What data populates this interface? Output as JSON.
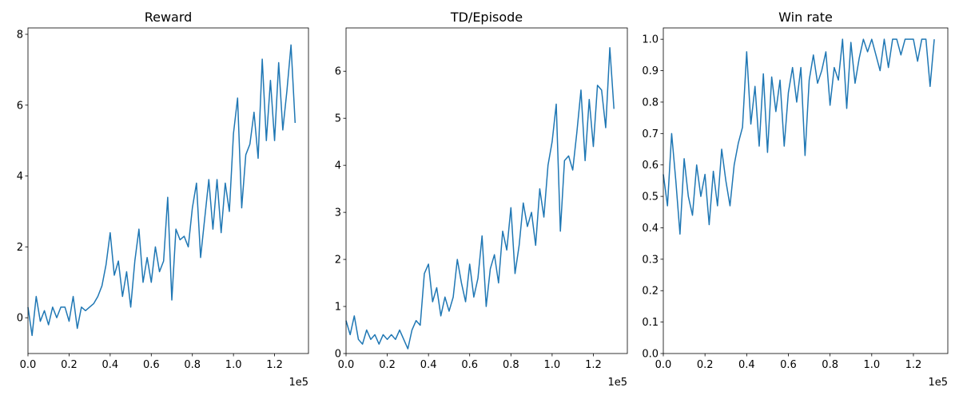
{
  "chart_data": [
    {
      "type": "line",
      "title": "Reward",
      "color": "#1f77b4",
      "x_offset_label": "1e5",
      "x": [
        0,
        0.02,
        0.04,
        0.06,
        0.08,
        0.1,
        0.12,
        0.14,
        0.16,
        0.18,
        0.2,
        0.22,
        0.24,
        0.26,
        0.28,
        0.3,
        0.32,
        0.34,
        0.36,
        0.38,
        0.4,
        0.42,
        0.44,
        0.46,
        0.48,
        0.5,
        0.52,
        0.54,
        0.56,
        0.58,
        0.6,
        0.62,
        0.64,
        0.66,
        0.68,
        0.7,
        0.72,
        0.74,
        0.76,
        0.78,
        0.8,
        0.82,
        0.84,
        0.86,
        0.88,
        0.9,
        0.92,
        0.94,
        0.96,
        0.98,
        1,
        1.02,
        1.04,
        1.06,
        1.08,
        1.1,
        1.12,
        1.14,
        1.16,
        1.18,
        1.2,
        1.22,
        1.24,
        1.26,
        1.28,
        1.3
      ],
      "values": [
        0.3,
        -0.5,
        0.6,
        -0.1,
        0.2,
        -0.2,
        0.3,
        0,
        0.3,
        0.3,
        -0.1,
        0.6,
        -0.3,
        0.3,
        0.2,
        0.3,
        0.4,
        0.6,
        0.9,
        1.5,
        2.4,
        1.2,
        1.6,
        0.6,
        1.3,
        0.3,
        1.6,
        2.5,
        1,
        1.7,
        1,
        2,
        1.3,
        1.6,
        3.4,
        0.5,
        2.5,
        2.2,
        2.3,
        2,
        3.1,
        3.8,
        1.7,
        2.8,
        3.9,
        2.5,
        3.9,
        2.4,
        3.8,
        3,
        5.2,
        6.2,
        3.1,
        4.6,
        4.9,
        5.8,
        4.5,
        7.3,
        5,
        6.7,
        5,
        7.2,
        5.3,
        6.4,
        7.7,
        5.5
      ],
      "xlim": [
        0,
        1.365
      ],
      "xticks": [
        {
          "value": 0,
          "label": "0.0"
        },
        0.2,
        0.4,
        0.6,
        0.8,
        {
          "value": 1,
          "label": "1.0"
        },
        1.2
      ],
      "ylim": [
        -1.01,
        8.18
      ],
      "yticks": [
        0,
        2,
        4,
        6,
        8
      ]
    },
    {
      "type": "line",
      "title": "TD/Episode",
      "color": "#1f77b4",
      "x_offset_label": "1e5",
      "x": [
        0,
        0.02,
        0.04,
        0.06,
        0.08,
        0.1,
        0.12,
        0.14,
        0.16,
        0.18,
        0.2,
        0.22,
        0.24,
        0.26,
        0.28,
        0.3,
        0.32,
        0.34,
        0.36,
        0.38,
        0.4,
        0.42,
        0.44,
        0.46,
        0.48,
        0.5,
        0.52,
        0.54,
        0.56,
        0.58,
        0.6,
        0.62,
        0.64,
        0.66,
        0.68,
        0.7,
        0.72,
        0.74,
        0.76,
        0.78,
        0.8,
        0.82,
        0.84,
        0.86,
        0.88,
        0.9,
        0.92,
        0.94,
        0.96,
        0.98,
        1,
        1.02,
        1.04,
        1.06,
        1.08,
        1.1,
        1.12,
        1.14,
        1.16,
        1.18,
        1.2,
        1.22,
        1.24,
        1.26,
        1.28,
        1.3
      ],
      "values": [
        0.7,
        0.4,
        0.8,
        0.3,
        0.2,
        0.5,
        0.3,
        0.4,
        0.2,
        0.4,
        0.3,
        0.4,
        0.3,
        0.5,
        0.3,
        0.1,
        0.5,
        0.7,
        0.6,
        1.7,
        1.9,
        1.1,
        1.4,
        0.8,
        1.2,
        0.9,
        1.2,
        2,
        1.5,
        1.1,
        1.9,
        1.2,
        1.6,
        2.5,
        1,
        1.8,
        2.1,
        1.5,
        2.6,
        2.2,
        3.1,
        1.7,
        2.3,
        3.2,
        2.7,
        3,
        2.3,
        3.5,
        2.9,
        4,
        4.5,
        5.3,
        2.6,
        4.1,
        4.2,
        3.9,
        4.7,
        5.6,
        4.1,
        5.4,
        4.4,
        5.7,
        5.6,
        4.8,
        6.5,
        5.2
      ],
      "xlim": [
        0,
        1.365
      ],
      "xticks": [
        {
          "value": 0,
          "label": "0.0"
        },
        0.2,
        0.4,
        0.6,
        0.8,
        {
          "value": 1,
          "label": "1.0"
        },
        1.2
      ],
      "ylim": [
        0,
        6.92
      ],
      "yticks": [
        0,
        1,
        2,
        3,
        4,
        5,
        6
      ]
    },
    {
      "type": "line",
      "title": "Win rate",
      "color": "#1f77b4",
      "x_offset_label": "1e5",
      "x": [
        0,
        0.02,
        0.04,
        0.06,
        0.08,
        0.1,
        0.12,
        0.14,
        0.16,
        0.18,
        0.2,
        0.22,
        0.24,
        0.26,
        0.28,
        0.3,
        0.32,
        0.34,
        0.36,
        0.38,
        0.4,
        0.42,
        0.44,
        0.46,
        0.48,
        0.5,
        0.52,
        0.54,
        0.56,
        0.58,
        0.6,
        0.62,
        0.64,
        0.66,
        0.68,
        0.7,
        0.72,
        0.74,
        0.76,
        0.78,
        0.8,
        0.82,
        0.84,
        0.86,
        0.88,
        0.9,
        0.92,
        0.94,
        0.96,
        0.98,
        1,
        1.02,
        1.04,
        1.06,
        1.08,
        1.1,
        1.12,
        1.14,
        1.16,
        1.18,
        1.2,
        1.22,
        1.24,
        1.26,
        1.28,
        1.3
      ],
      "values": [
        0.57,
        0.47,
        0.7,
        0.55,
        0.38,
        0.62,
        0.5,
        0.44,
        0.6,
        0.5,
        0.57,
        0.41,
        0.58,
        0.47,
        0.65,
        0.55,
        0.47,
        0.6,
        0.67,
        0.72,
        0.96,
        0.73,
        0.85,
        0.66,
        0.89,
        0.64,
        0.88,
        0.77,
        0.87,
        0.66,
        0.83,
        0.91,
        0.8,
        0.91,
        0.63,
        0.87,
        0.95,
        0.86,
        0.9,
        0.96,
        0.79,
        0.91,
        0.87,
        1,
        0.78,
        0.99,
        0.86,
        0.94,
        1,
        0.96,
        1,
        0.95,
        0.9,
        1,
        0.91,
        1,
        1,
        0.95,
        1,
        1,
        1,
        0.93,
        1,
        1,
        0.85,
        1
      ],
      "xlim": [
        0,
        1.365
      ],
      "xticks": [
        {
          "value": 0,
          "label": "0.0"
        },
        0.2,
        0.4,
        0.6,
        0.8,
        {
          "value": 1,
          "label": "1.0"
        },
        1.2
      ],
      "ylim": [
        0,
        1.036
      ],
      "yticks": [
        {
          "value": 0,
          "label": "0.0"
        },
        0.1,
        0.2,
        0.3,
        0.4,
        0.5,
        0.6,
        0.7,
        0.8,
        0.9,
        {
          "value": 1,
          "label": "1.0"
        }
      ]
    }
  ]
}
